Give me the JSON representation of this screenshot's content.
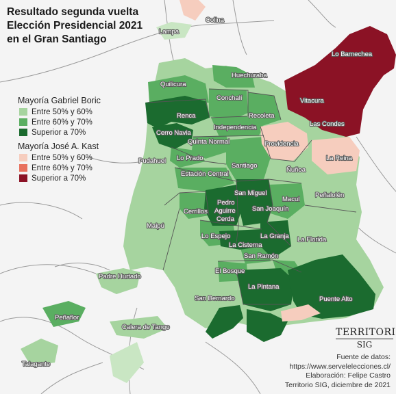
{
  "title": {
    "line1": "Resultado segunda vuelta",
    "line2": "Elección Presidencial 2021",
    "line3": "en el Gran Santiago"
  },
  "legend": {
    "boric": {
      "title": "Mayoría Gabriel Boric",
      "items": [
        {
          "label": "Entre 50% y 60%",
          "color": "#a6d49f"
        },
        {
          "label": "Entre 60% y 70%",
          "color": "#5aae61"
        },
        {
          "label": "Superior a 70%",
          "color": "#1b6b2f"
        }
      ]
    },
    "kast": {
      "title": "Mayoría José A. Kast",
      "items": [
        {
          "label": "Entre 50% y 60%",
          "color": "#f6cdbe"
        },
        {
          "label": "Entre 60% y 70%",
          "color": "#e8705d"
        },
        {
          "label": "Superior a 70%",
          "color": "#8b1225"
        }
      ]
    }
  },
  "communes": [
    {
      "name": "Colina"
    },
    {
      "name": "Lampa"
    },
    {
      "name": "Lo Barnechea"
    },
    {
      "name": "Huechuraba"
    },
    {
      "name": "Quilicura"
    },
    {
      "name": "Conchalí"
    },
    {
      "name": "Vitacura"
    },
    {
      "name": "Renca"
    },
    {
      "name": "Recoleta"
    },
    {
      "name": "Las Condes"
    },
    {
      "name": "Independencia"
    },
    {
      "name": "Cerro Navia"
    },
    {
      "name": "Quinta Normal"
    },
    {
      "name": "Providencia"
    },
    {
      "name": "Lo Prado"
    },
    {
      "name": "Pudahuel"
    },
    {
      "name": "Santiago"
    },
    {
      "name": "La Reina"
    },
    {
      "name": "Ñuñoa"
    },
    {
      "name": "Estación Central"
    },
    {
      "name": "San Miguel"
    },
    {
      "name": "Peñalolén"
    },
    {
      "name": "Macul"
    },
    {
      "name": "Cerrillos"
    },
    {
      "name": "Pedro Aguirre Cerda"
    },
    {
      "name": "San Joaquín"
    },
    {
      "name": "Maipú"
    },
    {
      "name": "Lo Espejo"
    },
    {
      "name": "La Granja"
    },
    {
      "name": "La Florida"
    },
    {
      "name": "La Cisterna"
    },
    {
      "name": "San Ramón"
    },
    {
      "name": "El Bosque"
    },
    {
      "name": "Padre Hurtado"
    },
    {
      "name": "La Pintana"
    },
    {
      "name": "San Bernardo"
    },
    {
      "name": "Puente Alto"
    },
    {
      "name": "Peñaflor"
    },
    {
      "name": "Calera de Tango"
    },
    {
      "name": "Talagante"
    }
  ],
  "logo": {
    "line1": "TERRITORIO",
    "line2": "SIG"
  },
  "credits": {
    "line1": "Fuente de datos:",
    "line2": "https://www.servelelecciones.cl/",
    "line3": "Elaboración: Felipe Castro",
    "line4": "Territorio SIG, diciembre de 2021"
  }
}
